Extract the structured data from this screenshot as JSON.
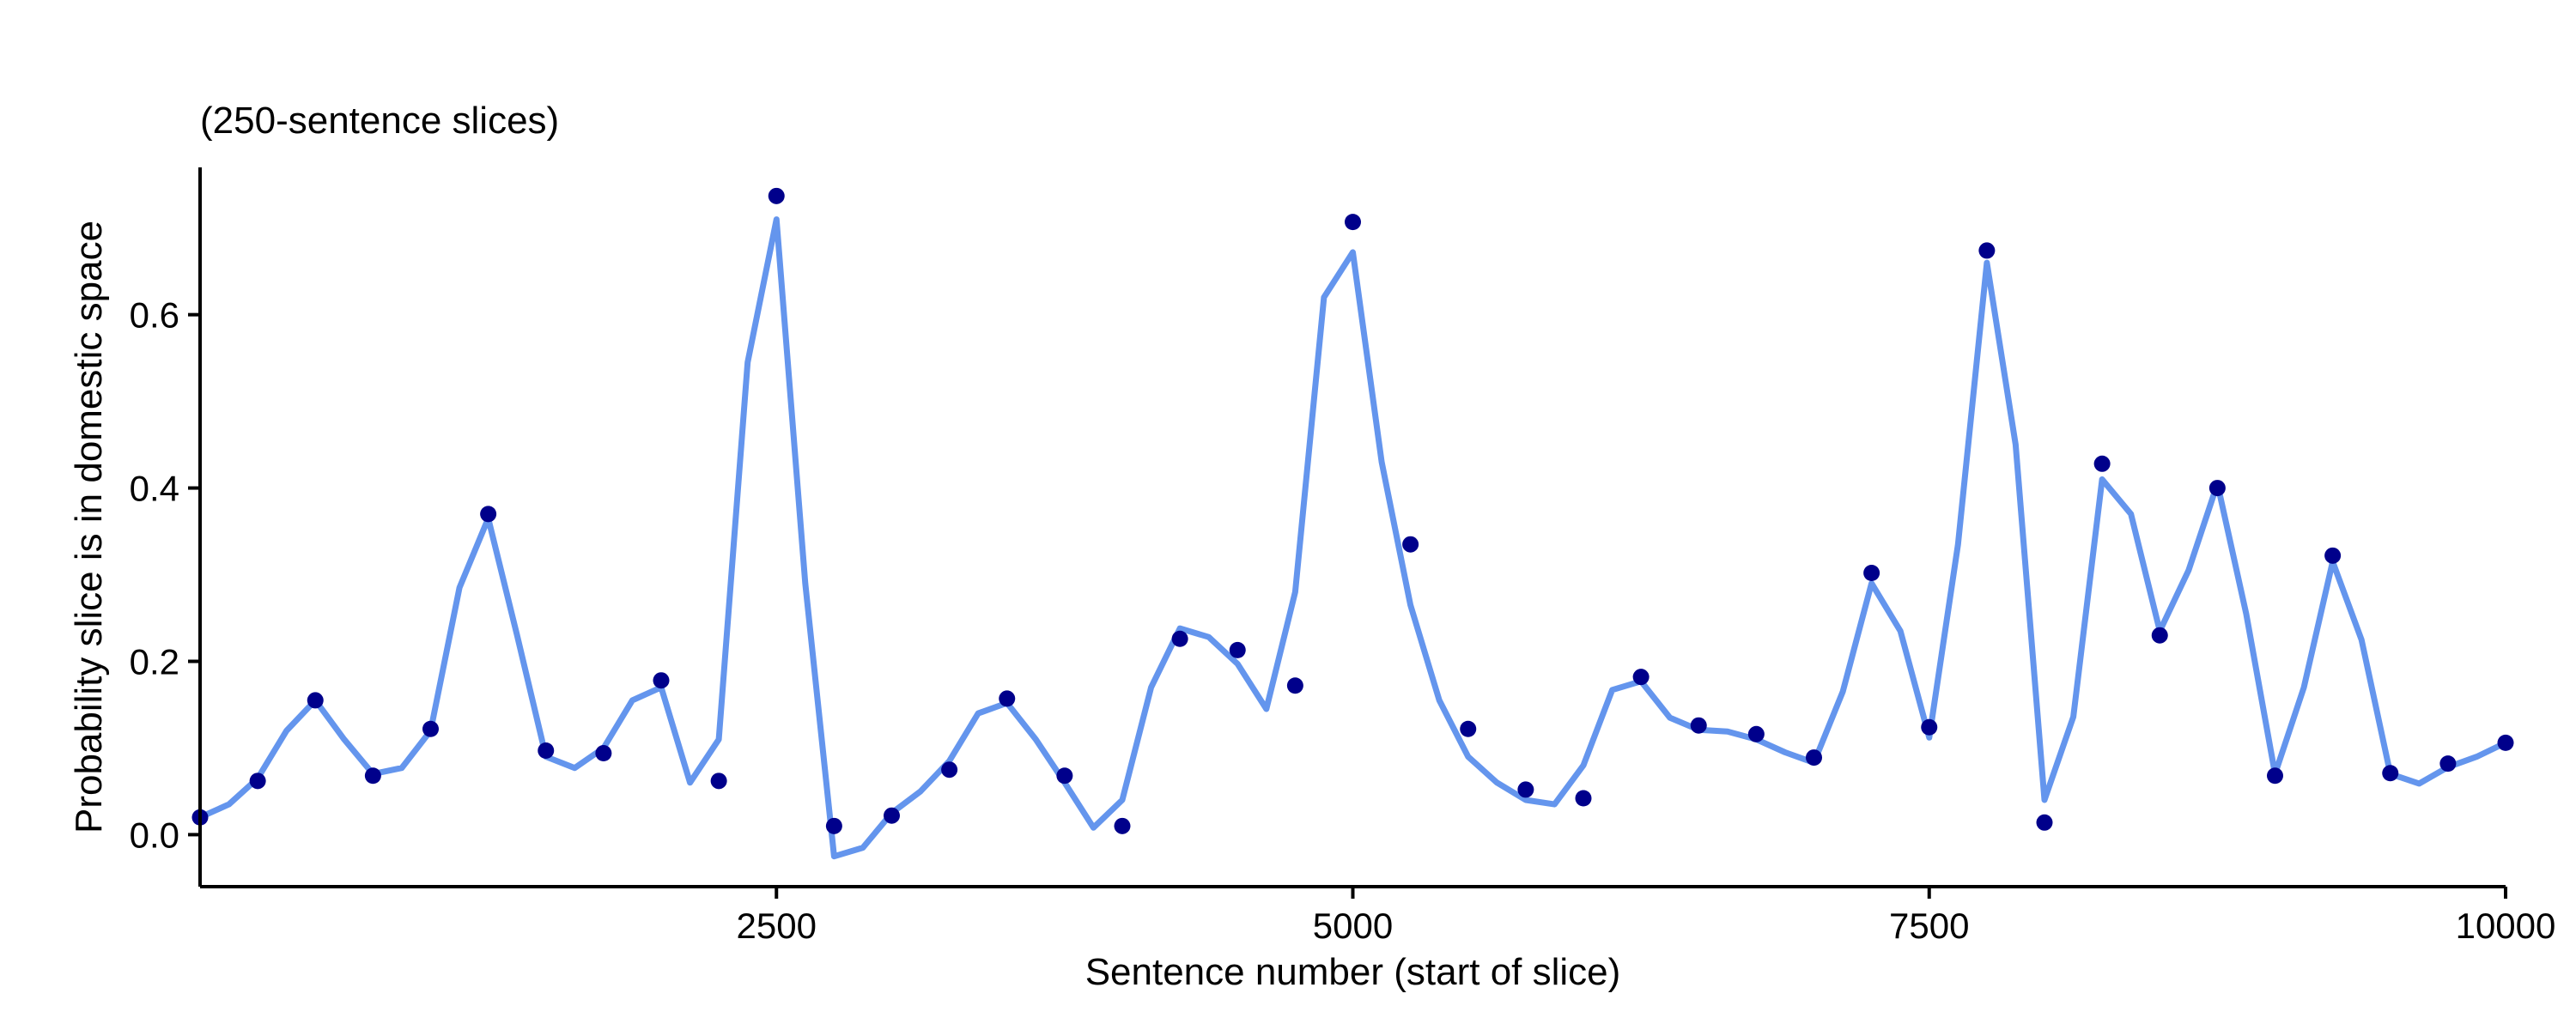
{
  "chart_data": {
    "type": "scatter",
    "subtitle": "(250-sentence slices)",
    "xlabel": "Sentence number (start of slice)",
    "ylabel": "Probability slice is in domestic space",
    "xlim": [
      0,
      10000
    ],
    "ylim": [
      -0.06,
      0.77
    ],
    "x_ticks": [
      2500,
      5000,
      7500,
      10000
    ],
    "y_ticks": [
      0.0,
      0.2,
      0.4,
      0.6
    ],
    "grid": false,
    "colors": {
      "points": "#00008B",
      "line": "#6495ED"
    },
    "series": [
      {
        "type": "points",
        "x": [
          0,
          250,
          500,
          750,
          1000,
          1250,
          1500,
          1750,
          2000,
          2250,
          2500,
          2750,
          3000,
          3250,
          3500,
          3750,
          4000,
          4250,
          4500,
          4750,
          5000,
          5250,
          5500,
          5750,
          6000,
          6250,
          6500,
          6750,
          7000,
          7250,
          7500,
          7750,
          8000,
          8250,
          8500,
          8750,
          9000,
          9250,
          9500,
          9750,
          10000
        ],
        "y": [
          0.02,
          0.062,
          0.155,
          0.068,
          0.122,
          0.37,
          0.097,
          0.094,
          0.178,
          0.062,
          0.737,
          0.01,
          0.022,
          0.075,
          0.157,
          0.068,
          0.01,
          0.226,
          0.213,
          0.172,
          0.707,
          0.335,
          0.122,
          0.052,
          0.042,
          0.182,
          0.126,
          0.116,
          0.089,
          0.302,
          0.124,
          0.674,
          0.014,
          0.428,
          0.23,
          0.4,
          0.068,
          0.322,
          0.071,
          0.082,
          0.106
        ]
      },
      {
        "type": "line",
        "x": [
          0,
          125,
          250,
          375,
          500,
          625,
          750,
          875,
          1000,
          1125,
          1250,
          1375,
          1500,
          1625,
          1750,
          1875,
          2000,
          2125,
          2250,
          2375,
          2500,
          2625,
          2750,
          2875,
          3000,
          3125,
          3250,
          3375,
          3500,
          3625,
          3750,
          3875,
          4000,
          4125,
          4250,
          4375,
          4500,
          4625,
          4750,
          4875,
          5000,
          5125,
          5250,
          5375,
          5500,
          5625,
          5750,
          5875,
          6000,
          6125,
          6250,
          6375,
          6500,
          6625,
          6750,
          6875,
          7000,
          7125,
          7250,
          7375,
          7500,
          7625,
          7750,
          7875,
          8000,
          8125,
          8250,
          8375,
          8500,
          8625,
          8750,
          8875,
          9000,
          9125,
          9250,
          9375,
          9500,
          9625,
          9750,
          9875,
          10000
        ],
        "y": [
          0.02,
          0.035,
          0.065,
          0.12,
          0.155,
          0.11,
          0.07,
          0.077,
          0.12,
          0.285,
          0.365,
          0.23,
          0.09,
          0.077,
          0.1,
          0.155,
          0.17,
          0.06,
          0.11,
          0.545,
          0.71,
          0.29,
          -0.025,
          -0.015,
          0.025,
          0.05,
          0.085,
          0.14,
          0.152,
          0.11,
          0.06,
          0.008,
          0.04,
          0.17,
          0.238,
          0.228,
          0.197,
          0.145,
          0.28,
          0.62,
          0.672,
          0.43,
          0.265,
          0.155,
          0.09,
          0.06,
          0.04,
          0.035,
          0.08,
          0.167,
          0.177,
          0.135,
          0.121,
          0.119,
          0.11,
          0.095,
          0.083,
          0.165,
          0.29,
          0.235,
          0.112,
          0.335,
          0.66,
          0.45,
          0.04,
          0.136,
          0.41,
          0.37,
          0.235,
          0.305,
          0.405,
          0.255,
          0.07,
          0.17,
          0.315,
          0.225,
          0.07,
          0.059,
          0.078,
          0.09,
          0.106
        ]
      }
    ]
  }
}
